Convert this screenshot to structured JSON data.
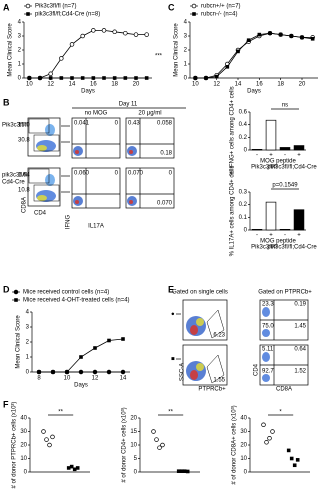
{
  "panel_labels": [
    "A",
    "B",
    "C",
    "D",
    "E",
    "F"
  ],
  "chart_data": [
    {
      "type": "line",
      "x": [
        10,
        11,
        12,
        13,
        14,
        15,
        16,
        17,
        18,
        19,
        20,
        21
      ],
      "xlim": [
        9.5,
        21.5
      ],
      "xticks": [
        10,
        12,
        14,
        16,
        18,
        20
      ],
      "ylim": [
        0,
        4
      ],
      "yticks": [
        0,
        1,
        2,
        3,
        4
      ],
      "xlabel": "Days",
      "ylabel": "Mean Clinical Score",
      "annotation": "***",
      "series": [
        {
          "name": "Pik3c3fl/fl (n=7)",
          "color": "#000",
          "marker": "circle-open",
          "values": [
            0,
            0,
            0.3,
            1.4,
            2.4,
            3.0,
            3.4,
            3.4,
            3.3,
            3.2,
            3.1,
            3.1
          ]
        },
        {
          "name": "pik3c3fl/fl;Cd4-Cre (n=8)",
          "color": "#000",
          "marker": "square",
          "values": [
            0,
            0,
            0,
            0,
            0,
            0,
            0,
            0,
            0,
            0,
            0,
            0
          ]
        }
      ]
    },
    {
      "type": "line",
      "x": [
        10,
        11,
        12,
        13,
        14,
        15,
        16,
        17,
        18,
        19,
        20,
        21
      ],
      "xlim": [
        9.5,
        21.5
      ],
      "xticks": [
        10,
        12,
        14,
        16,
        18,
        20
      ],
      "ylim": [
        0,
        4
      ],
      "yticks": [
        0,
        1,
        2,
        3,
        4
      ],
      "xlabel": "Days",
      "ylabel": "Mean Clinical Score",
      "series": [
        {
          "name": "rubcn+/+ (n=7)",
          "color": "#000",
          "marker": "circle-open",
          "values": [
            0,
            0,
            0.2,
            1.0,
            2.0,
            2.6,
            3.0,
            3.2,
            3.1,
            3.0,
            2.9,
            2.9
          ]
        },
        {
          "name": "rubcn-/- (n=4)",
          "color": "#000",
          "marker": "square",
          "values": [
            0,
            0,
            0.1,
            0.8,
            1.9,
            2.7,
            3.1,
            3.2,
            3.1,
            3.0,
            2.9,
            2.8
          ]
        }
      ]
    },
    {
      "type": "bar",
      "categories": [
        "-",
        "+",
        "-",
        "+"
      ],
      "ylim": [
        0,
        0.6
      ],
      "yticks": [
        0,
        0.2,
        0.4,
        0.6
      ],
      "xlabel": "MOG peptide",
      "ylabel": "% IFNG+ cells among CD4+ cells",
      "annotation": "ns",
      "series": [
        {
          "name": "Pik3c3fl/fl",
          "color": "#ffffff",
          "values": [
            0.01,
            0.47,
            null,
            null
          ]
        },
        {
          "name": "pik3c3fl/fl;Cd4-Cre",
          "color": "#000000",
          "values": [
            null,
            null,
            0.04,
            0.07
          ]
        }
      ]
    },
    {
      "type": "bar",
      "categories": [
        "-",
        "+",
        "-",
        "+"
      ],
      "ylim": [
        0,
        0.3
      ],
      "yticks": [
        0,
        0.1,
        0.2,
        0.3
      ],
      "xlabel": "MOG peptide",
      "ylabel": "% IL17A+ cells among CD4+ cells",
      "annotation": "p=0.1549",
      "series": [
        {
          "name": "Pik3c3fl/fl",
          "color": "#ffffff",
          "values": [
            0.005,
            0.22,
            null,
            null
          ]
        },
        {
          "name": "pik3c3fl/fl;Cd4-Cre",
          "color": "#000000",
          "values": [
            null,
            null,
            0.005,
            0.16
          ]
        }
      ]
    },
    {
      "type": "line",
      "x": [
        8,
        9,
        10,
        11,
        12,
        13,
        14
      ],
      "xlim": [
        7.5,
        14.5
      ],
      "xticks": [
        8,
        10,
        12,
        14
      ],
      "ylim": [
        0,
        4
      ],
      "yticks": [
        0,
        1,
        2,
        3,
        4
      ],
      "xlabel": "Days",
      "ylabel": "Mean Clinical Score",
      "series": [
        {
          "name": "Mice received control cells (n=4)",
          "color": "#000",
          "marker": "circle",
          "values": [
            0,
            0,
            0,
            0,
            0,
            0,
            0
          ]
        },
        {
          "name": "Mice received 4-OHT-treated cells (n=4)",
          "color": "#000",
          "marker": "square",
          "values": [
            0,
            0,
            0,
            1.0,
            1.6,
            2.1,
            2.2
          ]
        }
      ]
    },
    {
      "type": "dot",
      "ylim": [
        0,
        40
      ],
      "yticks": [
        0,
        10,
        20,
        30,
        40
      ],
      "ylabel": "# of donor PTPRCb+ cells (x10³)",
      "annotation": "**",
      "series": [
        {
          "color": "#000",
          "marker": "circle-open",
          "values": [
            30,
            24,
            20,
            26
          ]
        },
        {
          "color": "#000",
          "marker": "square",
          "values": [
            3,
            4,
            2,
            3
          ]
        }
      ]
    },
    {
      "type": "dot",
      "ylim": [
        0,
        20
      ],
      "yticks": [
        0,
        5,
        10,
        15,
        20
      ],
      "ylabel": "# of donor CD4+ cells (x10³)",
      "annotation": "**",
      "series": [
        {
          "color": "#000",
          "marker": "circle-open",
          "values": [
            15,
            12,
            9,
            10
          ]
        },
        {
          "color": "#000",
          "marker": "square",
          "values": [
            0.3,
            0.3,
            0.3,
            0.2
          ]
        }
      ]
    },
    {
      "type": "dot",
      "ylim": [
        0,
        40
      ],
      "yticks": [
        0,
        10,
        20,
        30,
        40
      ],
      "ylabel": "# of donor CD8A+ cells (x10³)",
      "annotation": "*",
      "series": [
        {
          "color": "#000",
          "marker": "circle-open",
          "values": [
            35,
            22,
            25,
            30
          ]
        },
        {
          "color": "#000",
          "marker": "square",
          "values": [
            16,
            10,
            5,
            9
          ]
        }
      ]
    }
  ],
  "flow": {
    "day": "Day 11",
    "conditions": [
      "no MOG",
      "20 µg/ml"
    ],
    "genotypes": [
      "Pik3c3fl/fl",
      "pik3c3fl/fl;",
      "Cd4-Cre"
    ],
    "cd_gates": [
      [
        "15.0",
        "30.8"
      ],
      [
        "1.64",
        "10.8"
      ]
    ],
    "quadrants": [
      [
        [
          "0.041",
          "0"
        ],
        [
          "0.43",
          "0.058",
          "0.18"
        ]
      ],
      [
        [
          "0.060",
          "0"
        ],
        [
          "0.070",
          "0",
          "0.070"
        ]
      ]
    ],
    "axes": [
      "CD8A",
      "CD4",
      "IFNG",
      "IL17A"
    ]
  },
  "gating": {
    "titles": [
      "Gated on single cells",
      "Gated on PTPRCb+"
    ],
    "markers": [
      "●",
      "■"
    ],
    "ptprc_gates": [
      "6.23",
      "1.55"
    ],
    "cd_quadrants": [
      [
        "23.3",
        "0.19",
        "75.0",
        "1.45"
      ],
      [
        "5.11",
        "0.64",
        "92.7",
        "1.52"
      ]
    ],
    "axes": [
      "SSC-A",
      "PTPRCb+",
      "CD4",
      "CD8A"
    ]
  }
}
